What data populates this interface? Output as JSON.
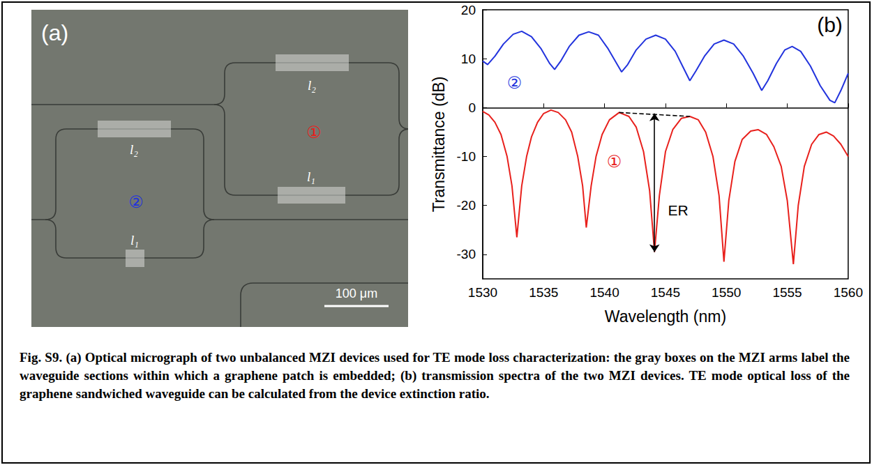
{
  "figure": {
    "caption_label": "Fig. S9.",
    "caption": "(a) Optical micrograph of two unbalanced MZI devices used for TE mode loss characterization: the gray boxes on the MZI arms label the waveguide sections within which a graphene patch is embedded; (b) transmission spectra of the two MZI devices. TE mode optical loss of the graphene sandwiched waveguide can be calculated from the device extinction ratio."
  },
  "micrograph": {
    "panel_label": "(a)",
    "scale_bar": "100 μm",
    "devices": [
      {
        "label": "①",
        "color": "#e8201c",
        "arm_labels": [
          "l₂",
          "l₁"
        ]
      },
      {
        "label": "②",
        "color": "#2233dd",
        "arm_labels": [
          "l₂",
          "l₁"
        ]
      }
    ]
  },
  "chart_data": {
    "type": "line",
    "panel_label": "(b)",
    "x_label": "Wavelength (nm)",
    "y_label": "Transmittance (dB)",
    "xlim": [
      1530,
      1560
    ],
    "xticks": [
      1530,
      1535,
      1540,
      1545,
      1550,
      1555,
      1560
    ],
    "ylim": [
      -35,
      20
    ],
    "yticks": [
      -30,
      -20,
      -10,
      0,
      10,
      20
    ],
    "grid": false,
    "marker": "none",
    "line_style": "solid",
    "series": [
      {
        "name": "①",
        "color": "#e8201c",
        "label_at": [
          1540.8,
          -11
        ],
        "x": [
          1530.0,
          1530.5,
          1531.0,
          1531.5,
          1532.0,
          1532.4,
          1532.8,
          1533.2,
          1533.6,
          1534.0,
          1534.5,
          1535.0,
          1535.6,
          1536.2,
          1536.8,
          1537.3,
          1537.8,
          1538.2,
          1538.5,
          1538.9,
          1539.3,
          1539.8,
          1540.4,
          1541.2,
          1542.0,
          1542.6,
          1543.2,
          1543.7,
          1544.1,
          1544.5,
          1545.0,
          1545.6,
          1546.3,
          1547.0,
          1547.7,
          1548.3,
          1548.9,
          1549.4,
          1549.8,
          1550.2,
          1550.7,
          1551.3,
          1552.0,
          1552.6,
          1553.3,
          1553.9,
          1554.5,
          1555.0,
          1555.5,
          1555.9,
          1556.4,
          1557.0,
          1557.6,
          1558.2,
          1558.8,
          1559.4,
          1560.0
        ],
        "values": [
          -0.8,
          -1.5,
          -3,
          -5.5,
          -10,
          -16,
          -26.5,
          -16,
          -10,
          -6,
          -3,
          -1.2,
          -0.5,
          -1,
          -2.5,
          -5,
          -10,
          -16,
          -24.5,
          -16,
          -10,
          -5.5,
          -2.5,
          -1,
          -1.8,
          -4,
          -9,
          -17,
          -29.5,
          -18,
          -9,
          -4.5,
          -2.2,
          -1.8,
          -2.5,
          -5,
          -10,
          -18,
          -31.5,
          -19,
          -11,
          -6.5,
          -4.8,
          -4.5,
          -5.5,
          -8,
          -12,
          -19,
          -32,
          -20,
          -12,
          -7.5,
          -5.5,
          -5,
          -5.8,
          -7.5,
          -10
        ]
      },
      {
        "name": "②",
        "color": "#2233dd",
        "label_at": [
          1532.6,
          5
        ],
        "x": [
          1530.0,
          1530.4,
          1531.0,
          1531.7,
          1532.5,
          1533.2,
          1534.0,
          1534.8,
          1535.5,
          1535.9,
          1536.4,
          1537.1,
          1537.9,
          1538.7,
          1539.5,
          1540.3,
          1541.0,
          1541.4,
          1541.9,
          1542.6,
          1543.4,
          1544.2,
          1545.0,
          1545.8,
          1546.5,
          1547.0,
          1547.5,
          1548.2,
          1549.0,
          1549.8,
          1550.6,
          1551.4,
          1552.2,
          1552.9,
          1553.4,
          1554.1,
          1554.8,
          1555.4,
          1556.1,
          1556.9,
          1557.7,
          1558.5,
          1558.9,
          1559.4,
          1560.0
        ],
        "values": [
          9.5,
          8.8,
          10.5,
          13,
          15,
          15.6,
          14.5,
          12,
          9,
          7.8,
          9.5,
          12.5,
          14.8,
          15.5,
          14.8,
          12,
          9,
          7.3,
          8.8,
          11.8,
          14,
          14.8,
          14,
          11.5,
          8,
          5.5,
          7.5,
          10.5,
          13,
          13.8,
          13,
          10.5,
          7,
          3.5,
          5.5,
          9,
          11.8,
          12.5,
          11.5,
          8.5,
          4.5,
          1.5,
          1,
          3.5,
          7
        ]
      }
    ],
    "annotations": [
      {
        "text": "ER",
        "label_at": [
          1545.2,
          -21
        ],
        "arrow": {
          "x": 1544.1,
          "y": [
            -1.2,
            -29.5
          ]
        },
        "dashed": {
          "x": [
            1541.2,
            1547.0
          ],
          "y": [
            -1.0,
            -1.8
          ]
        }
      }
    ]
  }
}
